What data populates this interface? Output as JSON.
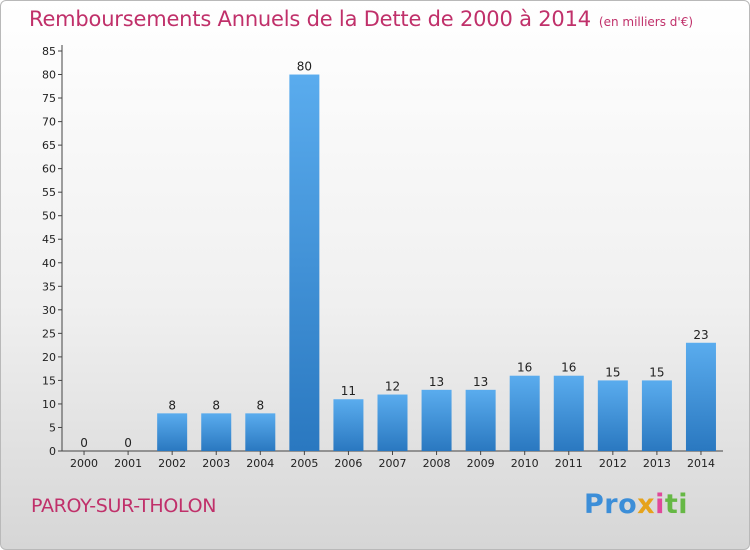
{
  "header": {
    "title": "Remboursements Annuels de la Dette de 2000 à 2014",
    "subtitle": "(en milliers d'€)"
  },
  "footer": {
    "place": "PAROY-SUR-THOLON",
    "logo": "Proxiti"
  },
  "colors": {
    "title": "#c0306a",
    "bar_top": "#5aacee",
    "bar_bottom": "#2a78c0"
  },
  "chart_data": {
    "type": "bar",
    "title": "Remboursements Annuels de la Dette de 2000 à 2014",
    "subtitle": "(en milliers d'€)",
    "xlabel": "",
    "ylabel": "",
    "categories": [
      "2000",
      "2001",
      "2002",
      "2003",
      "2004",
      "2005",
      "2006",
      "2007",
      "2008",
      "2009",
      "2010",
      "2011",
      "2012",
      "2013",
      "2014"
    ],
    "values": [
      0,
      0,
      8,
      8,
      8,
      80,
      11,
      12,
      13,
      13,
      16,
      16,
      15,
      15,
      23
    ],
    "data_labels": [
      "0",
      "0",
      "8",
      "8",
      "8",
      "80",
      "11",
      "12",
      "13",
      "13",
      "16",
      "16",
      "15",
      "15",
      "23"
    ],
    "ylim": [
      0,
      85
    ],
    "yticks": [
      0,
      5,
      10,
      15,
      20,
      25,
      30,
      35,
      40,
      45,
      50,
      55,
      60,
      65,
      70,
      75,
      80,
      85
    ],
    "grid": false
  }
}
